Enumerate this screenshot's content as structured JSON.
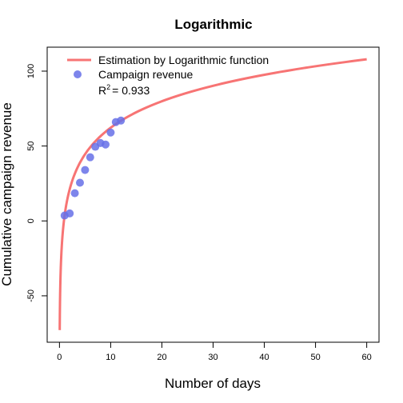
{
  "chart_data": {
    "type": "scatter",
    "title": "Logarithmic",
    "xlabel": "Number of days",
    "ylabel": "Cumulative campaign revenue",
    "xlim": [
      -2.4,
      62.4
    ],
    "ylim": [
      -81,
      116
    ],
    "x_ticks": [
      0,
      10,
      20,
      30,
      40,
      50,
      60
    ],
    "y_ticks": [
      -50,
      0,
      50,
      100
    ],
    "x_tick_labels": [
      "0",
      "10",
      "20",
      "30",
      "40",
      "50",
      "60"
    ],
    "y_tick_labels": [
      "-50",
      "0",
      "50",
      "100"
    ],
    "grid": false,
    "legend_position": "top-left",
    "series": [
      {
        "name": "Campaign revenue",
        "kind": "points",
        "color": "#6670e8",
        "x": [
          1,
          2,
          3,
          4,
          5,
          6,
          7,
          8,
          9,
          10,
          11,
          12
        ],
        "y": [
          3.6,
          5,
          18.5,
          25.5,
          34,
          42.5,
          49.5,
          52,
          51,
          59,
          66,
          67
        ]
      },
      {
        "name": "Estimation by Logarithmic function",
        "kind": "line",
        "color": "#f77474",
        "function": "y = a + b*ln(x)",
        "a": 3.5,
        "b": 25.5,
        "x_range": [
          0.05,
          60
        ]
      }
    ],
    "annotation": {
      "label": "R",
      "superscript": "2",
      "value": "= 0.933"
    }
  }
}
